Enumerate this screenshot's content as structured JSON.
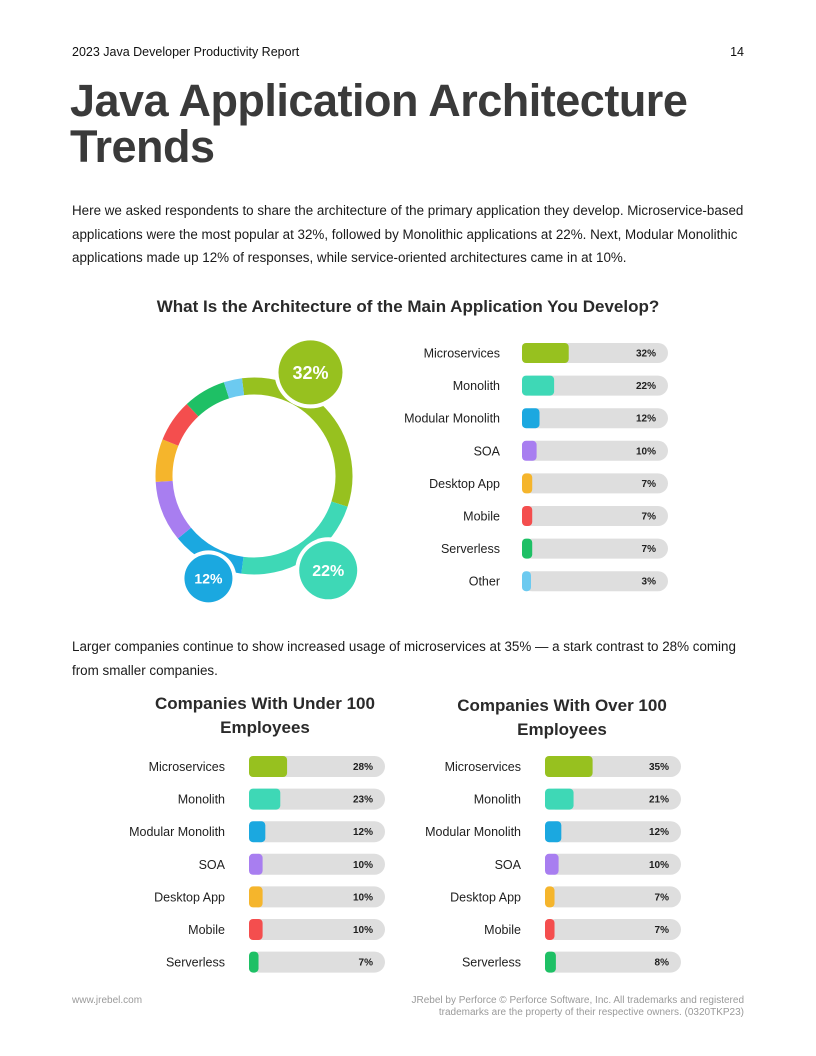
{
  "header": {
    "report_title": "2023 Java Developer Productivity Report",
    "page_number": "14"
  },
  "page_title": "Java Application Architecture Trends",
  "intro": "Here we asked respondents to share the architecture of the primary application they develop. Microservice-based applications were the most popular at 32%, followed by Monolithic applications at 22%. Next, Modular Monolithic applications made up 12% of responses, while service-oriented architectures came in at 10%.",
  "paragraph2": "Larger companies continue to show increased usage of microservices at 35% — a stark contrast to 28% coming from smaller companies.",
  "colors": {
    "Microservices": "#97c11f",
    "Monolith": "#3ed8b6",
    "Modular Monolith": "#1ba8e0",
    "SOA": "#a87ef0",
    "Desktop App": "#f5b52c",
    "Mobile": "#f44e4e",
    "Serverless": "#1ec065",
    "Other": "#6ccaf0",
    "track": "#dedede"
  },
  "chart_data": [
    {
      "type": "donut",
      "title": "What Is the Architecture of the Main Application You Develop?",
      "categories": [
        "Microservices",
        "Monolith",
        "Modular Monolith",
        "SOA",
        "Desktop App",
        "Mobile",
        "Serverless",
        "Other"
      ],
      "values": [
        32,
        22,
        12,
        10,
        7,
        7,
        7,
        3
      ],
      "value_labels": [
        "32%",
        "22%",
        "12%",
        "10%",
        "7%",
        "7%",
        "7%",
        "3%"
      ],
      "badges": [
        "32%",
        "22%",
        "12%"
      ]
    },
    {
      "type": "bar",
      "orientation": "horizontal",
      "title": "Companies With Under 100 Employees",
      "categories": [
        "Microservices",
        "Monolith",
        "Modular Monolith",
        "SOA",
        "Desktop App",
        "Mobile",
        "Serverless"
      ],
      "values": [
        28,
        23,
        12,
        10,
        10,
        10,
        7
      ],
      "value_labels": [
        "28%",
        "23%",
        "12%",
        "10%",
        "10%",
        "10%",
        "7%"
      ]
    },
    {
      "type": "bar",
      "orientation": "horizontal",
      "title": "Companies With Over 100 Employees",
      "categories": [
        "Microservices",
        "Monolith",
        "Modular Monolith",
        "SOA",
        "Desktop App",
        "Mobile",
        "Serverless"
      ],
      "values": [
        35,
        21,
        12,
        10,
        7,
        7,
        8
      ],
      "value_labels": [
        "35%",
        "21%",
        "12%",
        "10%",
        "7%",
        "7%",
        "8%"
      ]
    }
  ],
  "footer": {
    "url": "www.jrebel.com",
    "legal": "JRebel by Perforce © Perforce Software, Inc. All trademarks and registered trademarks are the property of their respective owners. (0320TKP23)"
  }
}
